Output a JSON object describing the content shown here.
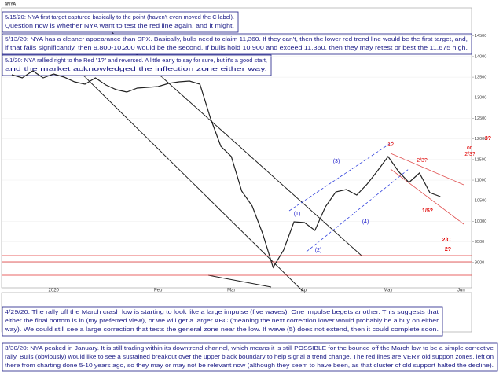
{
  "chart_data": {
    "type": "line",
    "title": "$NYA",
    "categories": [
      null,
      null,
      null,
      null,
      "2020",
      null,
      null,
      null,
      null,
      null,
      null,
      null,
      null,
      null,
      "Feb",
      null,
      null,
      null,
      null,
      null,
      null,
      "Mar",
      null,
      null,
      null,
      null,
      null,
      null,
      "Apr",
      null,
      null,
      null,
      null,
      null,
      null,
      null,
      "May",
      null,
      null,
      null,
      null,
      null,
      null,
      "Jun"
    ],
    "values": [
      13559,
      13483,
      13655,
      13483,
      13578,
      13502,
      13387,
      13330,
      13483,
      13311,
      13196,
      13139,
      13235,
      13254,
      13273,
      13349,
      13387,
      13406,
      13330,
      12509,
      11822,
      11574,
      10734,
      10371,
      9703,
      8882,
      9302,
      9989,
      9970,
      9779,
      10352,
      10715,
      10772,
      10638,
      10906,
      11230,
      11574,
      11211,
      10944,
      11173,
      10696,
      10600,
      null,
      null
    ],
    "color": "#222222",
    "ylim": [
      8500,
      14800
    ],
    "yticks": [
      9000,
      9500,
      10000,
      10500,
      11000,
      11500,
      12000,
      12500,
      13000,
      13500,
      14000,
      14500
    ],
    "grid": true,
    "wave_labels": [
      {
        "text": "1?",
        "color": "#e00000"
      },
      {
        "text": "2/3?",
        "color": "#e00000"
      },
      {
        "text": "or",
        "color": "#e00000"
      },
      {
        "text": "2/3?",
        "color": "#e00000"
      },
      {
        "text": "3?",
        "color": "#e00000"
      },
      {
        "text": "1/5?",
        "color": "#e00000"
      },
      {
        "text": "2/C",
        "color": "#e00000"
      },
      {
        "text": "2?",
        "color": "#e00000"
      },
      {
        "text": "(1)",
        "color": "#1a1acc"
      },
      {
        "text": "(2)",
        "color": "#1a1acc"
      },
      {
        "text": "(3)",
        "color": "#1a1acc"
      },
      {
        "text": "(4)",
        "color": "#1a1acc"
      }
    ],
    "annotations": [
      [
        "5/15/20:  NYA first target captured basically to the point (haven't even moved the C label).",
        "Question now is whether NYA want to test the red line again, and it might."
      ],
      [
        "5/13/20:  NYA has a cleaner appearance than SPX.  Basically, bulls need to claim 11,360.  If they can't, then the lower red trend line would be the first target, and,",
        "if that fails significantly, then 9,800-10,200 would be the second.  If bulls hold 10,900 and exceed 11,360, then they may retest or best the 11,675 high."
      ],
      [
        "5/1/20:  NYA rallied right to the Red \"1?\" and reversed.  A little early to say for sure, but it's a good start,",
        "and the market acknowledged the inflection zone either way."
      ],
      [
        "4/29/20:  The rally off the March crash low is starting to look like a large impulse (five waves).  One impulse begets another.  This suggests that",
        "either the final bottom is in (my preferred view), or we will get a larger ABC (meaning the next correction lower would probably be a buy on either",
        "way).  We could still see a large correction that tests the general zone near the low.  If wave (5) does not extend, then it could complete soon."
      ],
      [
        "3/30/20:  NYA peaked in January.  It is still trading within its downtrend channel, which means it is still POSSIBLE for the bounce off the March low to be a simple corrective",
        "rally.  Bulls (obviously) would like to see a sustained breakout over the upper black boundary to help signal a trend change.  The red lines are VERY old support zones, left on",
        "there from charting done 5-10 years ago, so they may or may not be relevant now (although they seem to have been, as that cluster of old support halted the decline)."
      ]
    ]
  }
}
